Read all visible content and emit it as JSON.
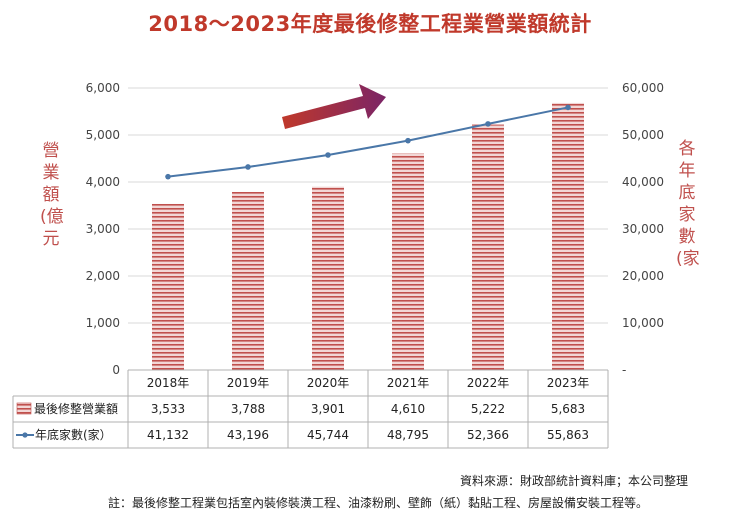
{
  "title": "2018～2023年度最後修整工程業營業額統計",
  "chart_data": {
    "type": "bar",
    "categories": [
      "2018年",
      "2019年",
      "2020年",
      "2021年",
      "2022年",
      "2023年"
    ],
    "series": [
      {
        "name": "最後修整營業額",
        "kind": "bar",
        "axis": "left",
        "values": [
          3533,
          3788,
          3901,
          4610,
          5222,
          5683
        ],
        "labels": [
          "3,533",
          "3,788",
          "3,901",
          "4,610",
          "5,222",
          "5,683"
        ]
      },
      {
        "name": "年底家數(家）",
        "kind": "line",
        "axis": "right",
        "values": [
          41132,
          43196,
          45744,
          48795,
          52366,
          55863
        ],
        "labels": [
          "41,132",
          "43,196",
          "45,744",
          "48,795",
          "52,366",
          "55,863"
        ]
      }
    ],
    "ylabel_left": "營業額(億元",
    "ylabel_right": "各年底家數(家",
    "ylim_left": [
      0,
      6000
    ],
    "ylim_right": [
      0,
      60000
    ],
    "yticks_left": [
      "0",
      "1,000",
      "2,000",
      "3,000",
      "4,000",
      "5,000",
      "6,000"
    ],
    "yticks_right": [
      "-",
      "10,000",
      "20,000",
      "30,000",
      "40,000",
      "50,000",
      "60,000"
    ],
    "colors": {
      "bar": "#c0504d",
      "bar_light": "#f2d7d6",
      "line": "#4a77a8",
      "arrow_start": "#c0392b",
      "arrow_end": "#7b2466",
      "title": "#c0392b",
      "axis_label": "#c0504d"
    }
  },
  "source": "資料來源：財政部統計資料庫；本公司整理",
  "note": "註：最後修整工程業包括室內裝修裝潢工程、油漆粉刷、壁飾（紙）黏貼工程、房屋設備安裝工程等。"
}
